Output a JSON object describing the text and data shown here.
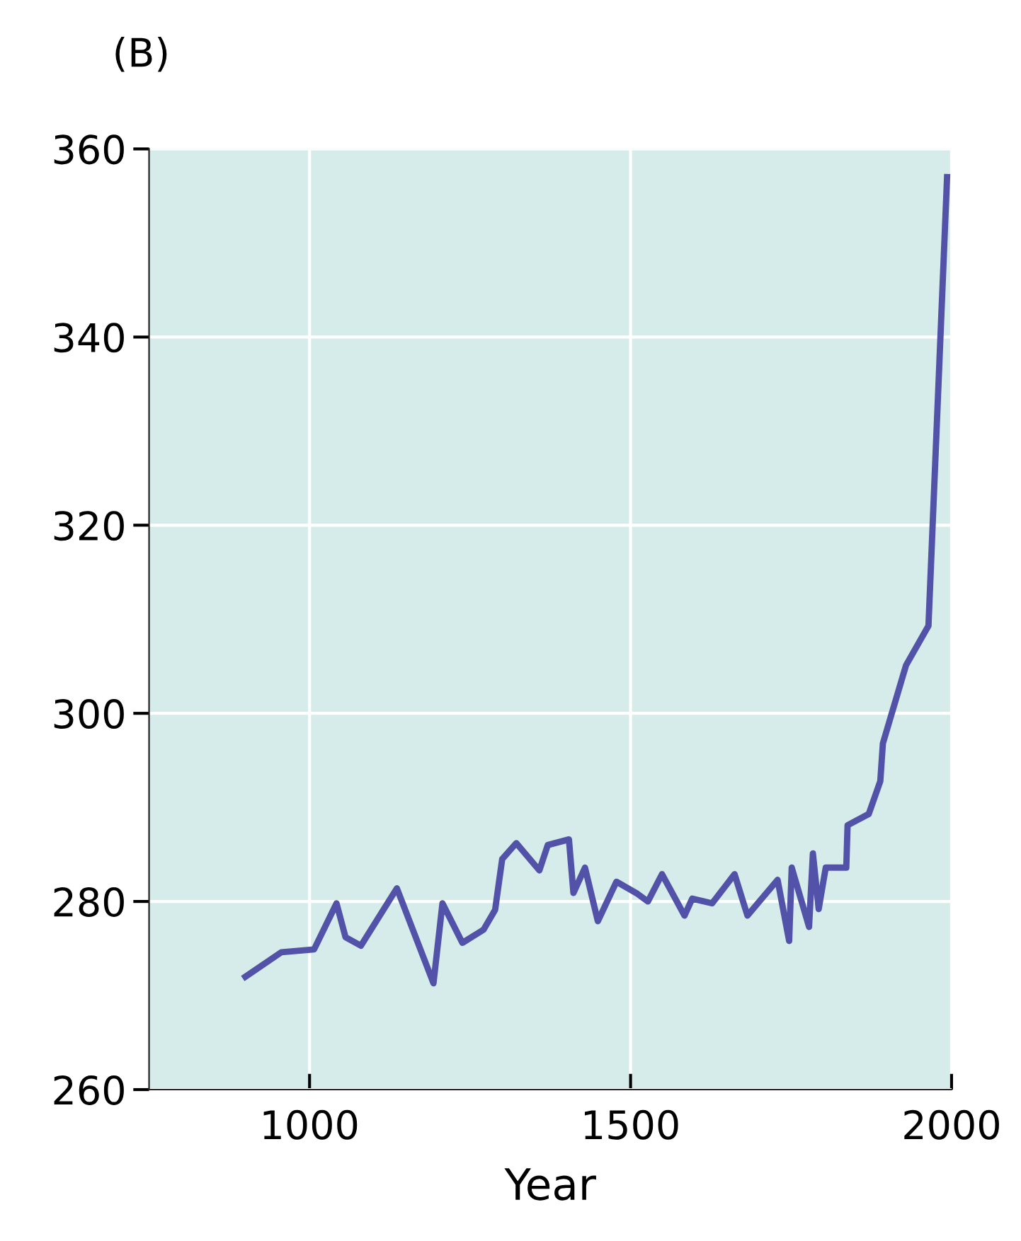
{
  "chart_data": {
    "type": "line",
    "title": "(B)",
    "xlabel": "Year",
    "x": [
      900,
      956,
      1007,
      1042,
      1056,
      1080,
      1136,
      1193,
      1207,
      1238,
      1271,
      1289,
      1300,
      1322,
      1358,
      1371,
      1404,
      1411,
      1429,
      1449,
      1478,
      1511,
      1527,
      1549,
      1584,
      1596,
      1627,
      1662,
      1682,
      1729,
      1747,
      1751,
      1778,
      1784,
      1793,
      1804,
      1836,
      1838,
      1871,
      1889,
      1893,
      1929,
      1964,
      1993
    ],
    "series": [
      {
        "color": "#5252a8",
        "values": [
          272.0,
          274.6,
          274.9,
          279.8,
          276.2,
          275.3,
          281.4,
          271.3,
          279.8,
          275.6,
          277.0,
          279.1,
          284.5,
          286.2,
          283.3,
          286.0,
          286.6,
          280.9,
          283.6,
          277.9,
          282.1,
          280.8,
          280.0,
          282.9,
          278.5,
          280.3,
          279.8,
          282.9,
          278.5,
          282.3,
          275.8,
          283.6,
          277.3,
          285.1,
          279.2,
          283.6,
          283.6,
          288.1,
          289.3,
          292.8,
          296.8,
          305.1,
          309.3,
          357.0
        ]
      }
    ],
    "xlim": [
      750,
      2000
    ],
    "ylim": [
      260,
      360
    ],
    "xticks": [
      1000,
      1500,
      2000
    ],
    "yticks": [
      260,
      280,
      300,
      320,
      340,
      360
    ],
    "grid": true,
    "marker": "none",
    "line_style": "solid",
    "legend": false
  }
}
